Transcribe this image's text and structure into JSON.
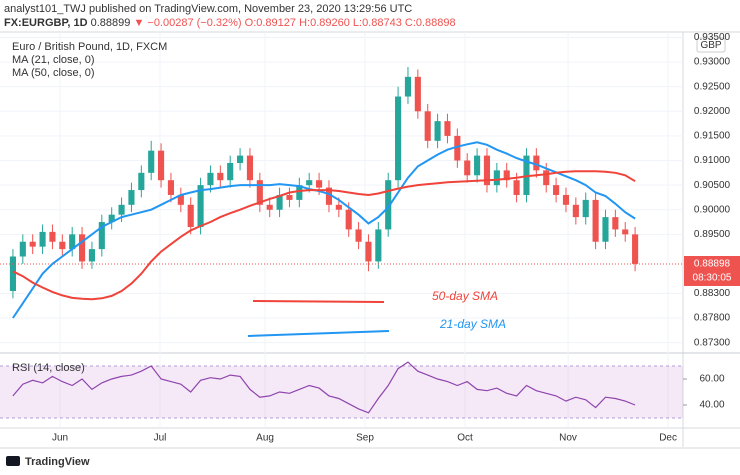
{
  "header": {
    "published": "analyst101_TWJ published on TradingView.com, November 23, 2020 13:29:56 UTC",
    "symbol": "FX:EURGBP, 1D",
    "price": "0.88899",
    "arrow": "▼",
    "change": "−0.00287 (−0.32%)",
    "ohlc": "O:0.89127 H:0.89260 L:0.88743 C:0.88898"
  },
  "chart_data": [
    {
      "type": "candlestick",
      "title": "Euro / British Pound, 1D, FXCM",
      "currency": "GBP",
      "categories": [
        null,
        null,
        null,
        null,
        null,
        null,
        null,
        null,
        null,
        null,
        null,
        null,
        null,
        null,
        null,
        null,
        null,
        null,
        null,
        null,
        null,
        null,
        null,
        null,
        null,
        null,
        null,
        null,
        null,
        null,
        null,
        null,
        null,
        null,
        null,
        null,
        null,
        null,
        null,
        null,
        null,
        null,
        null,
        null,
        null,
        null,
        null,
        null,
        null,
        null,
        null,
        null,
        null,
        null,
        null,
        null,
        null,
        null,
        null,
        null,
        null,
        null,
        null,
        null
      ],
      "open": [
        0.8835,
        0.8905,
        0.8935,
        0.8925,
        0.8955,
        0.8935,
        0.892,
        0.895,
        0.8895,
        0.892,
        0.8975,
        0.899,
        0.901,
        0.904,
        0.9075,
        0.912,
        0.906,
        0.903,
        0.901,
        0.8965,
        0.905,
        0.9075,
        0.906,
        0.9095,
        0.911,
        0.906,
        0.901,
        0.9,
        0.903,
        0.902,
        0.905,
        0.906,
        0.9045,
        0.901,
        0.9,
        0.896,
        0.8935,
        0.8895,
        0.896,
        0.906,
        0.923,
        0.927,
        0.92,
        0.914,
        0.918,
        0.915,
        0.91,
        0.907,
        0.911,
        0.905,
        0.908,
        0.906,
        0.903,
        0.911,
        0.908,
        0.905,
        0.903,
        0.901,
        0.8985,
        0.902,
        0.8935,
        0.8985,
        0.896,
        0.895
      ],
      "high": [
        0.892,
        0.895,
        0.895,
        0.897,
        0.897,
        0.895,
        0.8965,
        0.8965,
        0.8935,
        0.899,
        0.9005,
        0.9025,
        0.9055,
        0.909,
        0.914,
        0.9135,
        0.9075,
        0.9045,
        0.9025,
        0.9065,
        0.909,
        0.909,
        0.911,
        0.9125,
        0.9125,
        0.9075,
        0.9025,
        0.9045,
        0.9045,
        0.9065,
        0.9075,
        0.9075,
        0.906,
        0.9025,
        0.9015,
        0.8975,
        0.895,
        0.8975,
        0.9075,
        0.925,
        0.929,
        0.9285,
        0.9215,
        0.9195,
        0.9195,
        0.9165,
        0.9115,
        0.9125,
        0.9125,
        0.9095,
        0.9095,
        0.9075,
        0.9125,
        0.9125,
        0.9095,
        0.9065,
        0.9045,
        0.9025,
        0.9035,
        0.9035,
        0.9,
        0.9,
        0.8975,
        0.8965
      ],
      "low": [
        0.882,
        0.889,
        0.891,
        0.891,
        0.892,
        0.8905,
        0.8905,
        0.888,
        0.888,
        0.8905,
        0.896,
        0.8975,
        0.8995,
        0.9025,
        0.906,
        0.9045,
        0.9015,
        0.8995,
        0.895,
        0.895,
        0.9035,
        0.9045,
        0.9045,
        0.908,
        0.9045,
        0.8995,
        0.8985,
        0.8985,
        0.9005,
        0.9005,
        0.9035,
        0.903,
        0.8995,
        0.8985,
        0.8945,
        0.892,
        0.8875,
        0.888,
        0.8945,
        0.9045,
        0.9215,
        0.9185,
        0.9125,
        0.9125,
        0.9135,
        0.9085,
        0.9055,
        0.9055,
        0.9035,
        0.9035,
        0.9045,
        0.9015,
        0.9015,
        0.9065,
        0.9035,
        0.9015,
        0.8995,
        0.897,
        0.897,
        0.892,
        0.892,
        0.8945,
        0.8935,
        0.8875
      ],
      "close": [
        0.8905,
        0.8935,
        0.8925,
        0.8955,
        0.8935,
        0.892,
        0.895,
        0.8895,
        0.892,
        0.8975,
        0.899,
        0.901,
        0.904,
        0.9075,
        0.912,
        0.906,
        0.903,
        0.901,
        0.8965,
        0.905,
        0.9075,
        0.906,
        0.9095,
        0.911,
        0.906,
        0.901,
        0.9,
        0.903,
        0.902,
        0.905,
        0.906,
        0.9045,
        0.901,
        0.9,
        0.896,
        0.8935,
        0.8895,
        0.896,
        0.906,
        0.923,
        0.927,
        0.92,
        0.914,
        0.918,
        0.915,
        0.91,
        0.907,
        0.911,
        0.905,
        0.908,
        0.906,
        0.903,
        0.911,
        0.908,
        0.905,
        0.903,
        0.901,
        0.8985,
        0.902,
        0.8935,
        0.8985,
        0.896,
        0.895,
        0.889
      ],
      "up_color": "#26a69a",
      "down_color": "#ef5350",
      "series": [
        {
          "name": "MA (21, close, 0)",
          "color": "#2196f3",
          "values": [
            0.878,
            0.881,
            0.884,
            0.887,
            0.889,
            0.8905,
            0.892,
            0.8935,
            0.895,
            0.8965,
            0.8975,
            0.8985,
            0.899,
            0.8995,
            0.9,
            0.901,
            0.902,
            0.903,
            0.9035,
            0.904,
            0.9042,
            0.9045,
            0.9048,
            0.905,
            0.905,
            0.905,
            0.905,
            0.9052,
            0.905,
            0.9048,
            0.9042,
            0.9038,
            0.9032,
            0.902,
            0.9005,
            0.899,
            0.8972,
            0.8985,
            0.9005,
            0.9035,
            0.9065,
            0.9088,
            0.91,
            0.9112,
            0.9122,
            0.9128,
            0.9133,
            0.9137,
            0.9132,
            0.9122,
            0.9114,
            0.9105,
            0.9098,
            0.9092,
            0.9084,
            0.9076,
            0.9068,
            0.906,
            0.905,
            0.9035,
            0.9028,
            0.9012,
            0.8995,
            0.8982
          ]
        },
        {
          "name": "MA (50, close, 0)",
          "color": "#f0433a",
          "values": [
            0.8875,
            0.8865,
            0.8852,
            0.8842,
            0.8833,
            0.8826,
            0.8821,
            0.8819,
            0.8818,
            0.882,
            0.8825,
            0.8835,
            0.885,
            0.887,
            0.8895,
            0.8915,
            0.893,
            0.8945,
            0.8958,
            0.8967,
            0.8975,
            0.8985,
            0.8993,
            0.9,
            0.9008,
            0.9015,
            0.9022,
            0.9028,
            0.9035,
            0.9038,
            0.904,
            0.904,
            0.904,
            0.9038,
            0.9035,
            0.9032,
            0.903,
            0.9033,
            0.9038,
            0.9043,
            0.9047,
            0.905,
            0.9052,
            0.9054,
            0.9056,
            0.9057,
            0.9058,
            0.9059,
            0.906,
            0.9061,
            0.9063,
            0.9065,
            0.9068,
            0.907,
            0.9072,
            0.9075,
            0.9077,
            0.9078,
            0.9078,
            0.9078,
            0.9077,
            0.9075,
            0.907,
            0.9058
          ]
        }
      ],
      "ylim": [
        0.8711,
        0.9355
      ],
      "yticks": [
        {
          "value": 0.935,
          "label": "0.93500"
        },
        {
          "value": 0.93,
          "label": "0.93000"
        },
        {
          "value": 0.925,
          "label": "0.92500"
        },
        {
          "value": 0.92,
          "label": "0.92000"
        },
        {
          "value": 0.915,
          "label": "0.91500"
        },
        {
          "value": 0.91,
          "label": "0.91000"
        },
        {
          "value": 0.905,
          "label": "0.90500"
        },
        {
          "value": 0.9,
          "label": "0.90000"
        },
        {
          "value": 0.895,
          "label": "0.89500"
        },
        {
          "value": 0.883,
          "label": "0.88300"
        },
        {
          "value": 0.878,
          "label": "0.87800"
        },
        {
          "value": 0.873,
          "label": "0.87300"
        }
      ],
      "xlim": [
        0,
        68.35
      ],
      "xticks": [
        {
          "value": 5.27,
          "label": "Jun"
        },
        {
          "value": 15.39,
          "label": "Jul"
        },
        {
          "value": 26.03,
          "label": "Aug"
        },
        {
          "value": 36.15,
          "label": "Sep"
        },
        {
          "value": 46.28,
          "label": "Oct"
        },
        {
          "value": 56.71,
          "label": "Nov"
        },
        {
          "value": 66.84,
          "label": "Dec"
        }
      ],
      "last_price": 0.88898,
      "countdown": "08:30:05",
      "last_color": "#ef5350",
      "annotations": [
        {
          "text": "50-day SMA",
          "color": "#f0433a"
        },
        {
          "text": "21-day SMA",
          "color": "#2196f3"
        }
      ],
      "grid": true
    },
    {
      "type": "line",
      "title": "RSI (14, close)",
      "color": "#8e44ad",
      "values": [
        47,
        56,
        59,
        57,
        62,
        58,
        55,
        60,
        52,
        57,
        60,
        62,
        63,
        66,
        70,
        60,
        58,
        56,
        50,
        59,
        61,
        60,
        63,
        62,
        52,
        46,
        47,
        50,
        49,
        52,
        55,
        53,
        47,
        45,
        41,
        37,
        34,
        45,
        55,
        68,
        73,
        66,
        63,
        60,
        58,
        55,
        58,
        52,
        51,
        53,
        49,
        47,
        55,
        51,
        49,
        47,
        43,
        46,
        44,
        38,
        46,
        45,
        43,
        40
      ],
      "band": [
        30,
        70
      ],
      "ylim": [
        24.6,
        78.5
      ],
      "yticks": [
        {
          "value": 60,
          "label": "60.00"
        },
        {
          "value": 40,
          "label": "40.00"
        }
      ]
    }
  ],
  "footer": {
    "brand": "TradingView"
  }
}
